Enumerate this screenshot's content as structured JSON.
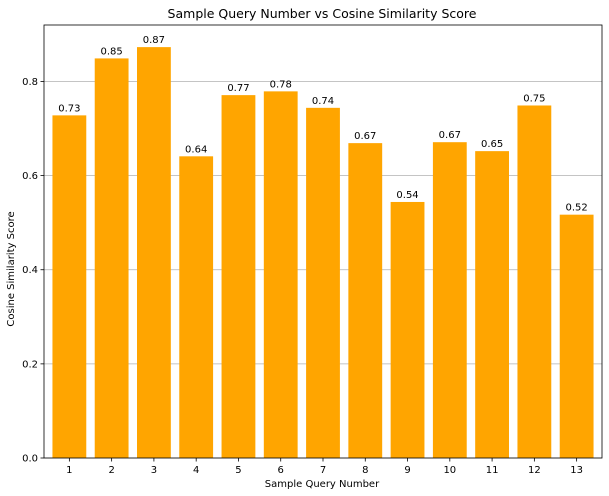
{
  "chart_data": {
    "type": "bar",
    "title": "Sample Query Number vs Cosine Similarity Score",
    "xlabel": "Sample Query Number",
    "ylabel": "Cosine Similarity Score",
    "categories": [
      "1",
      "2",
      "3",
      "4",
      "5",
      "6",
      "7",
      "8",
      "9",
      "10",
      "11",
      "12",
      "13"
    ],
    "values": [
      0.728,
      0.849,
      0.873,
      0.641,
      0.771,
      0.779,
      0.744,
      0.669,
      0.544,
      0.671,
      0.652,
      0.749,
      0.517
    ],
    "data_labels": [
      "0.73",
      "0.85",
      "0.87",
      "0.64",
      "0.77",
      "0.78",
      "0.74",
      "0.67",
      "0.54",
      "0.67",
      "0.65",
      "0.75",
      "0.52"
    ],
    "ylim": [
      0,
      0.92
    ],
    "yticks": [
      0.0,
      0.2,
      0.4,
      0.6,
      0.8
    ],
    "ytick_labels": [
      "0.0",
      "0.2",
      "0.4",
      "0.6",
      "0.8"
    ],
    "grid": "y",
    "bar_color": "#ffa500",
    "legend": "none"
  }
}
